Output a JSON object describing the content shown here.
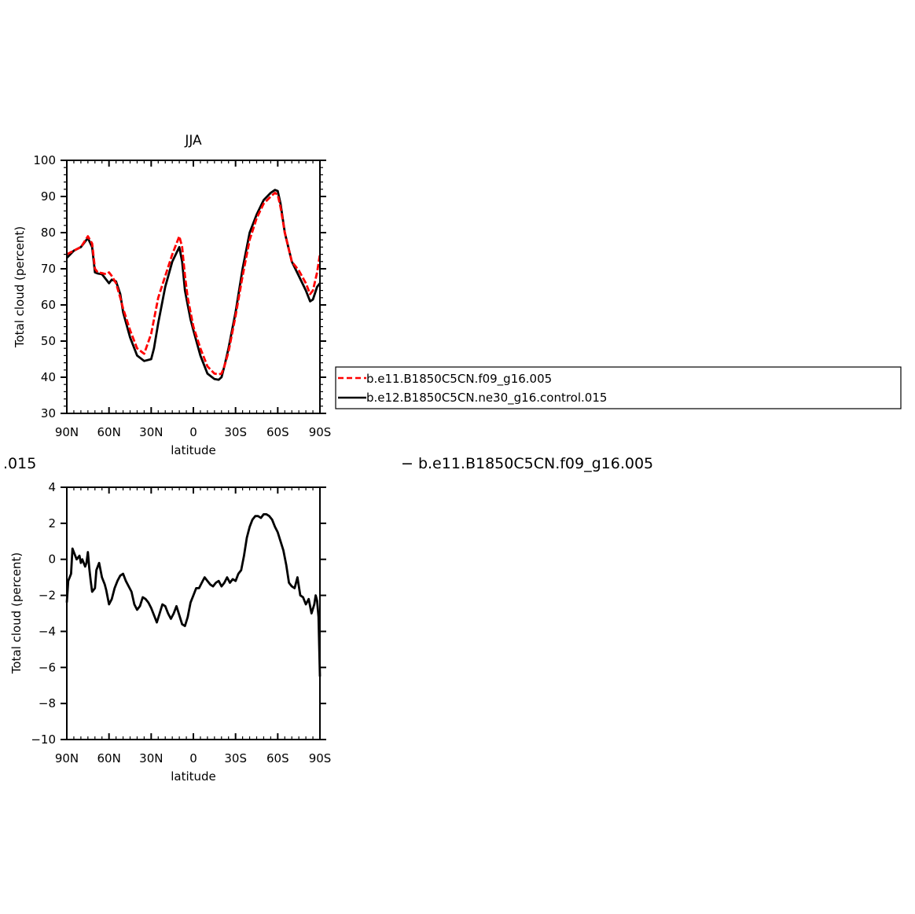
{
  "chart_data": [
    {
      "type": "line",
      "title": "JJA",
      "xlabel": "latitude",
      "ylabel": "Total cloud (percent)",
      "xlim": [
        90,
        -90
      ],
      "ylim": [
        30,
        100
      ],
      "x_ticks": [
        90,
        60,
        30,
        0,
        -30,
        -60,
        -90
      ],
      "x_tick_labels": [
        "90N",
        "60N",
        "30N",
        "0",
        "30S",
        "60S",
        "90S"
      ],
      "y_ticks": [
        30,
        40,
        50,
        60,
        70,
        80,
        90,
        100
      ],
      "y_tick_labels": [
        "30",
        "40",
        "50",
        "60",
        "70",
        "80",
        "90",
        "100"
      ],
      "legend_position": "right",
      "series": [
        {
          "name": "b.e11.B1850C5CN.f09_g16.005",
          "color": "#ff0000",
          "style": "dashed",
          "x": [
            90,
            85,
            80,
            75,
            72,
            70,
            68,
            65,
            62,
            60,
            58,
            55,
            52,
            50,
            45,
            40,
            35,
            30,
            27,
            25,
            20,
            15,
            10,
            8,
            6,
            4,
            2,
            0,
            -5,
            -10,
            -15,
            -18,
            -20,
            -22,
            -25,
            -30,
            -35,
            -40,
            -45,
            -50,
            -55,
            -58,
            -60,
            -62,
            -65,
            -70,
            -75,
            -80,
            -83,
            -85,
            -88,
            -90
          ],
          "y": [
            74,
            75,
            76,
            79,
            77,
            70,
            69,
            68.8,
            68.5,
            69,
            68,
            66,
            62,
            59,
            53,
            48,
            46.5,
            52,
            58,
            62,
            68,
            74,
            79,
            76,
            68,
            62,
            58,
            54,
            48,
            43,
            41,
            40.8,
            41,
            43,
            47,
            57,
            68,
            78,
            84,
            88,
            90,
            91,
            90.5,
            87,
            80,
            72,
            69.5,
            66,
            63,
            64,
            69,
            74
          ]
        },
        {
          "name": "b.e12.B1850C5CN.ne30_g16.control.015",
          "color": "#000000",
          "style": "solid",
          "x": [
            90,
            85,
            80,
            75,
            72,
            70,
            68,
            65,
            62,
            60,
            58,
            55,
            52,
            50,
            45,
            40,
            35,
            30,
            28,
            25,
            20,
            15,
            10,
            8,
            6,
            4,
            2,
            0,
            -5,
            -10,
            -15,
            -18,
            -20,
            -22,
            -25,
            -30,
            -35,
            -40,
            -45,
            -50,
            -55,
            -58,
            -60,
            -62,
            -65,
            -70,
            -75,
            -80,
            -83,
            -85,
            -88,
            -90
          ],
          "y": [
            73,
            75,
            76,
            78.5,
            76,
            69,
            68.7,
            68.5,
            67,
            66,
            67,
            66.5,
            63,
            58,
            51,
            46,
            44.5,
            45,
            48,
            55,
            65,
            72,
            76,
            72,
            64,
            60,
            56,
            53,
            46,
            41,
            39.5,
            39.3,
            40,
            43,
            48,
            58,
            70,
            80,
            85,
            89,
            91,
            91.8,
            91.5,
            88,
            80,
            72,
            68,
            64,
            61,
            61.5,
            65,
            66
          ]
        }
      ]
    },
    {
      "type": "line",
      "title": "",
      "xlabel": "latitude",
      "ylabel": "Total cloud (percent)",
      "xlim": [
        90,
        -90
      ],
      "ylim": [
        -10,
        4
      ],
      "x_ticks": [
        90,
        60,
        30,
        0,
        -30,
        -60,
        -90
      ],
      "x_tick_labels": [
        "90N",
        "60N",
        "30N",
        "0",
        "30S",
        "60S",
        "90S"
      ],
      "y_ticks": [
        -10,
        -8,
        -6,
        -4,
        -2,
        0,
        2,
        4
      ],
      "y_tick_labels": [
        "−10",
        "−8",
        "−6",
        "−4",
        "−2",
        "0",
        "2",
        "4"
      ],
      "series": [
        {
          "name": "",
          "color": "#000000",
          "style": "solid",
          "x": [
            90,
            89,
            87,
            86,
            85,
            83,
            81,
            80,
            79,
            77,
            76,
            75,
            74,
            73,
            72,
            70,
            69,
            67,
            65,
            63,
            62,
            60,
            58,
            56,
            54,
            52,
            50,
            48,
            46,
            44,
            42,
            40,
            38,
            36,
            34,
            32,
            30,
            28,
            26,
            24,
            22,
            20,
            18,
            16,
            14,
            12,
            10,
            8,
            6,
            4,
            2,
            0,
            -2,
            -4,
            -6,
            -8,
            -10,
            -12,
            -14,
            -16,
            -18,
            -20,
            -22,
            -24,
            -26,
            -28,
            -30,
            -32,
            -34,
            -36,
            -38,
            -40,
            -42,
            -44,
            -46,
            -48,
            -50,
            -52,
            -54,
            -56,
            -58,
            -60,
            -62,
            -64,
            -66,
            -68,
            -70,
            -72,
            -74,
            -76,
            -78,
            -80,
            -82,
            -84,
            -86,
            -87,
            -88,
            -89,
            -90
          ],
          "y": [
            -2.4,
            -1.2,
            -0.8,
            0.6,
            0.4,
            0,
            0.2,
            -0.2,
            0,
            -0.4,
            -0.2,
            0.4,
            -0.5,
            -1.2,
            -1.8,
            -1.6,
            -0.6,
            -0.2,
            -1,
            -1.4,
            -1.7,
            -2.5,
            -2.2,
            -1.6,
            -1.2,
            -0.9,
            -0.8,
            -1.2,
            -1.5,
            -1.8,
            -2.5,
            -2.8,
            -2.6,
            -2.1,
            -2.2,
            -2.4,
            -2.7,
            -3.1,
            -3.5,
            -3.0,
            -2.5,
            -2.6,
            -3.0,
            -3.3,
            -3.0,
            -2.6,
            -3.1,
            -3.6,
            -3.7,
            -3.2,
            -2.4,
            -2.0,
            -1.6,
            -1.6,
            -1.3,
            -1.0,
            -1.2,
            -1.4,
            -1.5,
            -1.3,
            -1.2,
            -1.5,
            -1.3,
            -1.0,
            -1.3,
            -1.1,
            -1.2,
            -0.8,
            -0.6,
            0.2,
            1.2,
            1.8,
            2.2,
            2.4,
            2.4,
            2.3,
            2.5,
            2.5,
            2.4,
            2.2,
            1.8,
            1.5,
            1.0,
            0.5,
            -0.3,
            -1.3,
            -1.5,
            -1.6,
            -1.0,
            -2.0,
            -2.1,
            -2.5,
            -2.2,
            -3.0,
            -2.5,
            -2.0,
            -2.3,
            -3.2,
            -6.5
          ]
        }
      ]
    }
  ],
  "stray_labels": {
    "left": ".015",
    "right": "−  b.e11.B1850C5CN.f09_g16.005"
  }
}
